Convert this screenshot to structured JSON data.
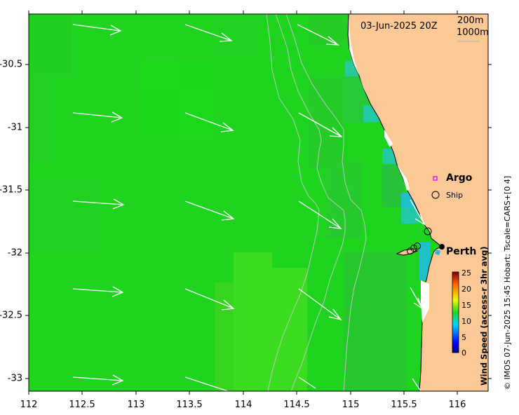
{
  "map": {
    "date_label": "03-Jun-2025 20Z",
    "contour_200": "200m",
    "contour_1000": "1000m",
    "lon_ticks": [
      "112",
      "112.5",
      "113",
      "113.5",
      "114",
      "114.5",
      "115",
      "115.5",
      "116"
    ],
    "lat_ticks": [
      "-30.5",
      "-31",
      "-31.5",
      "-32",
      "-32.5",
      "-33"
    ],
    "lon_range": [
      112,
      116.3
    ],
    "lat_range": [
      -33.1,
      -30.07
    ],
    "place_label": "Perth",
    "place_coords": [
      115.86,
      -31.95
    ]
  },
  "legend": {
    "argo_label": "Argo",
    "ship_label": "Ship"
  },
  "colorbar": {
    "ticks": [
      "25",
      "20",
      "15",
      "10",
      "5",
      "0"
    ],
    "title": "Wind Speed (access-r 3hr avg)",
    "min": 0,
    "max": 25
  },
  "credit": "© IMOS 07-Jun-2025 15:45 Hobart; Tscale=CARS+[0 4]",
  "wind": {
    "direction_note": "wind blowing toward east-southeast",
    "speeds_region": "approx 11-14 offshore, 10-11 near coast"
  },
  "colors": {
    "land": "#fcc896",
    "sea_main": "#1fd41f",
    "sea_light": "#3fdc1f",
    "sea_cyan": "#22c8b4",
    "arrow": "#ffffff",
    "argo": "#e020e0"
  }
}
